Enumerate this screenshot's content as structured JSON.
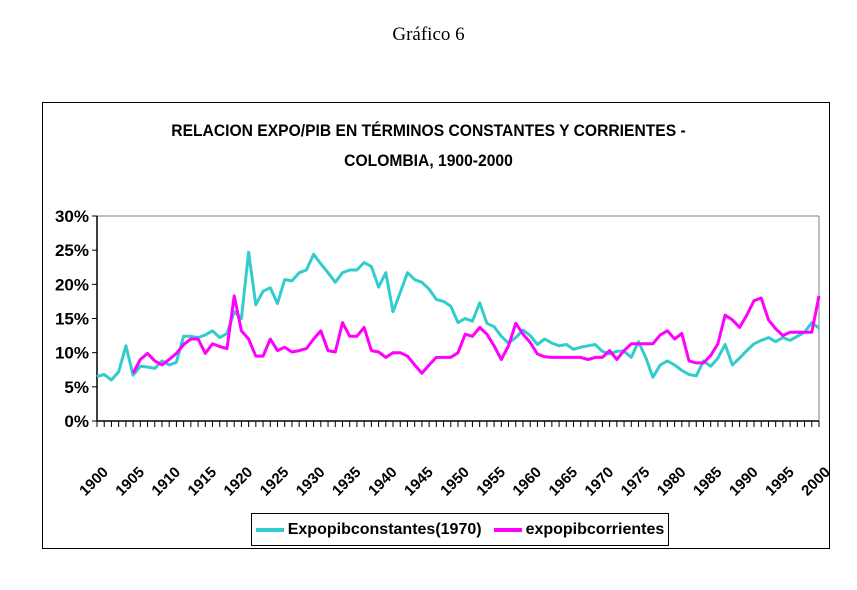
{
  "page_title": "Gráfico 6",
  "chart_data": {
    "type": "line",
    "title_lines": [
      "RELACION EXPO/PIB EN TÉRMINOS CONSTANTES Y CORRIENTES -",
      "COLOMBIA, 1900-2000"
    ],
    "xlabel": "",
    "ylabel": "",
    "x_start": 1900,
    "x_end": 2000,
    "x_ticks": [
      "1900",
      "1905",
      "1910",
      "1915",
      "1920",
      "1925",
      "1930",
      "1935",
      "1940",
      "1945",
      "1950",
      "1955",
      "1960",
      "1965",
      "1970",
      "1975",
      "1980",
      "1985",
      "1990",
      "1995",
      "2000"
    ],
    "y_ticks": [
      "0%",
      "5%",
      "10%",
      "15%",
      "20%",
      "25%",
      "30%"
    ],
    "ylim": [
      0,
      30
    ],
    "grid": false,
    "legend_position": "bottom",
    "series": [
      {
        "name": "Expopibconstantes(1970)",
        "color": "#33CCCC",
        "start_year": 1900,
        "values": [
          6.5,
          6.8,
          6,
          7.2,
          11,
          6.7,
          8,
          7.9,
          7.7,
          8.8,
          8.2,
          8.6,
          12.4,
          12.4,
          12.2,
          12.6,
          13.2,
          12.2,
          12.8,
          16,
          15,
          24.7,
          17,
          19,
          19.5,
          17.2,
          20.7,
          20.5,
          21.7,
          22.1,
          24.4,
          23,
          21.7,
          20.3,
          21.7,
          22.1,
          22.1,
          23.2,
          22.6,
          19.6,
          21.7,
          16,
          18.8,
          21.7,
          20.7,
          20.3,
          19.3,
          17.8,
          17.5,
          16.8,
          14.4,
          15,
          14.6,
          17.3,
          14.3,
          13.8,
          12.4,
          11.4,
          12.2,
          13.3,
          12.5,
          11.2,
          12,
          11.4,
          11,
          11.2,
          10.5,
          10.8,
          11,
          11.2,
          10.2,
          9.8,
          10.2,
          10.2,
          9.3,
          11.6,
          9.3,
          6.4,
          8.2,
          8.8,
          8.2,
          7.4,
          6.8,
          6.6,
          8.8,
          8,
          9.2,
          11.2,
          8.2,
          9.2,
          10.3,
          11.3,
          11.8,
          12.2,
          11.6,
          12.2,
          11.8,
          12.4,
          13,
          14.4,
          13.6
        ]
      },
      {
        "name": "expopibcorrientes",
        "color": "#FF00FF",
        "start_year": 1905,
        "values": [
          7,
          9,
          9.9,
          8.8,
          8.2,
          9,
          9.9,
          11.2,
          12,
          12,
          9.9,
          11.3,
          10.9,
          10.6,
          18.3,
          13.2,
          12,
          9.5,
          9.5,
          12,
          10.3,
          10.8,
          10.1,
          10.3,
          10.6,
          12,
          13.2,
          10.3,
          10.1,
          14.4,
          12.4,
          12.4,
          13.7,
          10.3,
          10.1,
          9.3,
          10,
          10,
          9.5,
          8.2,
          7,
          8.2,
          9.3,
          9.3,
          9.3,
          10,
          12.7,
          12.4,
          13.7,
          12.7,
          11,
          9,
          11,
          14.3,
          12.7,
          11.5,
          9.8,
          9.4,
          9.3,
          9.3,
          9.3,
          9.3,
          9.3,
          9,
          9.3,
          9.3,
          10.3,
          9,
          10.3,
          11.3,
          11.3,
          11.3,
          11.3,
          12.6,
          13.2,
          12,
          12.8,
          8.8,
          8.5,
          8.5,
          9.6,
          11.3,
          15.5,
          14.8,
          13.7,
          15.5,
          17.6,
          18,
          14.8,
          13.5,
          12.5,
          13,
          13,
          13,
          13,
          18.3
        ]
      }
    ]
  }
}
